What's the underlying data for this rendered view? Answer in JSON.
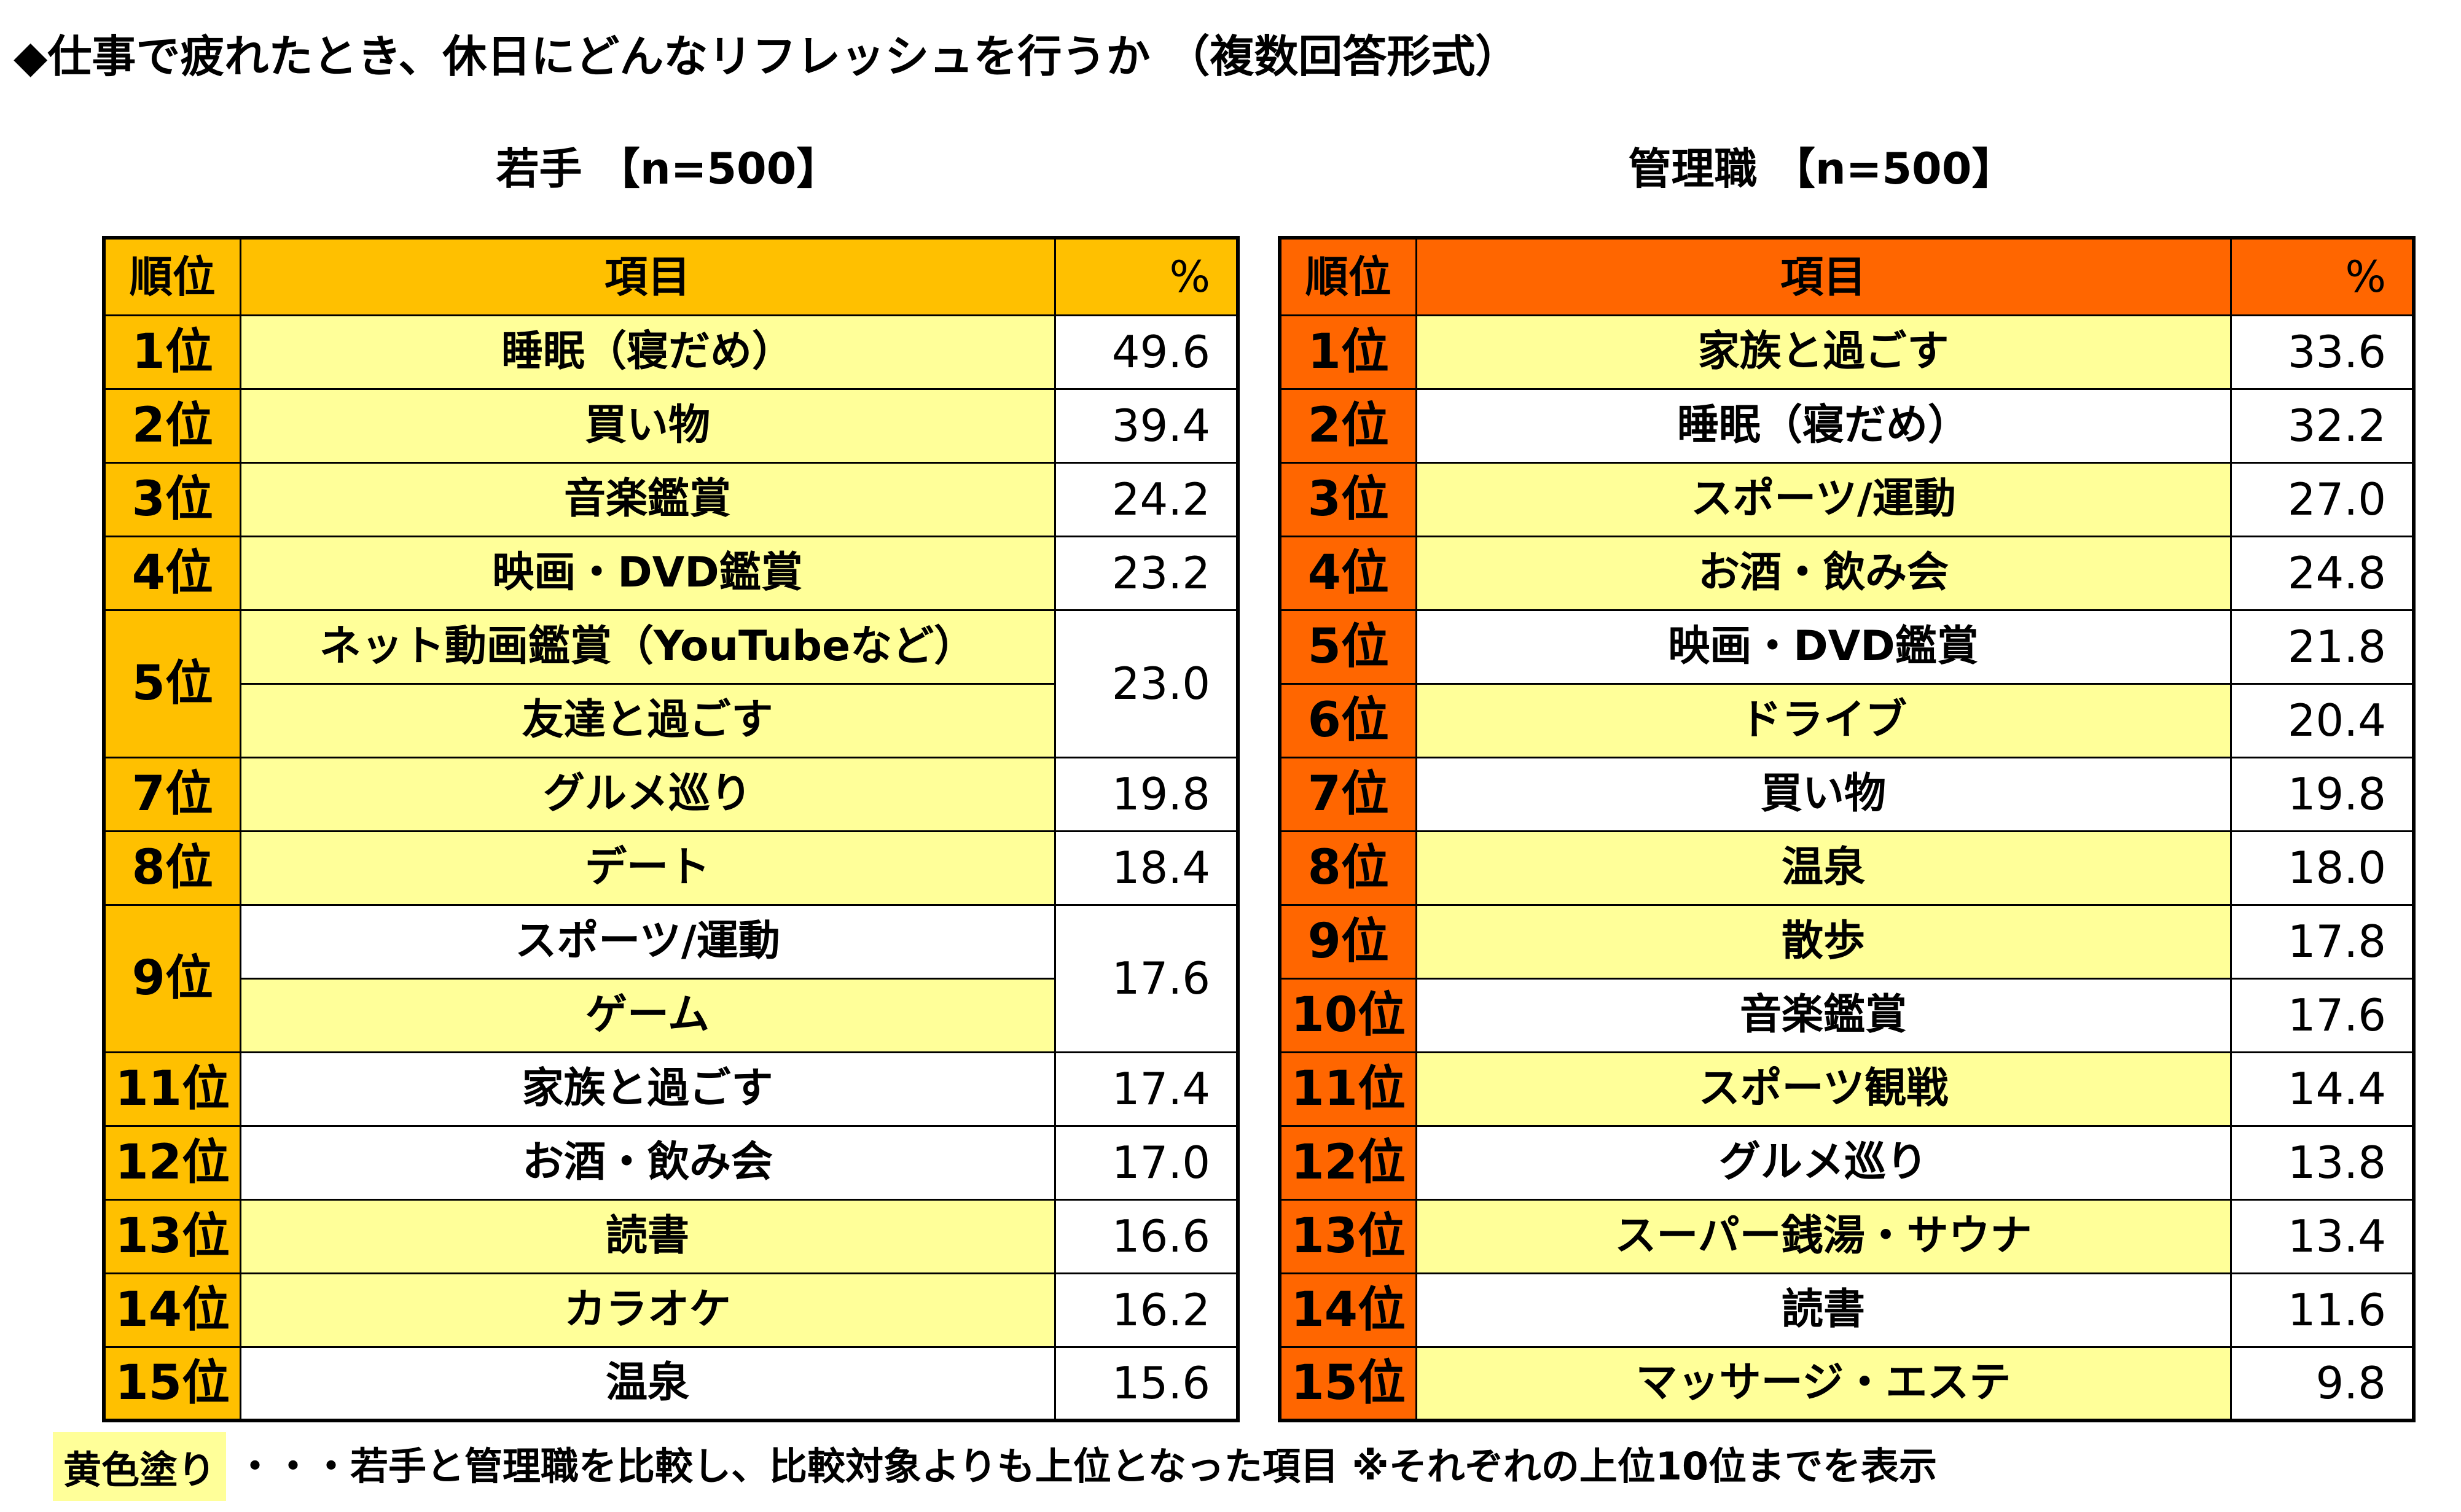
{
  "title": "◆仕事で疲れたとき、休日にどんなリフレッシュを行うか （複数回答形式）",
  "colors": {
    "highlight": "#FFFF99",
    "young_rank": "#FFC000",
    "manager_rank": "#FF6600",
    "plain": "#FFFFFF"
  },
  "tables": [
    {
      "subtitle": "若手 【n=500】",
      "headers": {
        "rank": "順位",
        "item": "項目",
        "pct": "%"
      },
      "rows": [
        {
          "rank": "1位",
          "items": [
            {
              "label": "睡眠（寝だめ）",
              "highlight": true
            }
          ],
          "pct": "49.6"
        },
        {
          "rank": "2位",
          "items": [
            {
              "label": "買い物",
              "highlight": true
            }
          ],
          "pct": "39.4"
        },
        {
          "rank": "3位",
          "items": [
            {
              "label": "音楽鑑賞",
              "highlight": true
            }
          ],
          "pct": "24.2"
        },
        {
          "rank": "4位",
          "items": [
            {
              "label": "映画・DVD鑑賞",
              "highlight": true
            }
          ],
          "pct": "23.2"
        },
        {
          "rank": "5位",
          "items": [
            {
              "label": "ネット動画鑑賞（YouTubeなど）",
              "highlight": true
            },
            {
              "label": "友達と過ごす",
              "highlight": true
            }
          ],
          "pct": "23.0"
        },
        {
          "rank": "7位",
          "items": [
            {
              "label": "グルメ巡り",
              "highlight": true
            }
          ],
          "pct": "19.8"
        },
        {
          "rank": "8位",
          "items": [
            {
              "label": "デート",
              "highlight": true
            }
          ],
          "pct": "18.4"
        },
        {
          "rank": "9位",
          "items": [
            {
              "label": "スポーツ/運動",
              "highlight": false
            },
            {
              "label": "ゲーム",
              "highlight": true
            }
          ],
          "pct": "17.6"
        },
        {
          "rank": "11位",
          "items": [
            {
              "label": "家族と過ごす",
              "highlight": false
            }
          ],
          "pct": "17.4"
        },
        {
          "rank": "12位",
          "items": [
            {
              "label": "お酒・飲み会",
              "highlight": false
            }
          ],
          "pct": "17.0"
        },
        {
          "rank": "13位",
          "items": [
            {
              "label": "読書",
              "highlight": true
            }
          ],
          "pct": "16.6"
        },
        {
          "rank": "14位",
          "items": [
            {
              "label": "カラオケ",
              "highlight": true
            }
          ],
          "pct": "16.2"
        },
        {
          "rank": "15位",
          "items": [
            {
              "label": "温泉",
              "highlight": false
            }
          ],
          "pct": "15.6"
        }
      ]
    },
    {
      "subtitle": "管理職 【n=500】",
      "headers": {
        "rank": "順位",
        "item": "項目",
        "pct": "%"
      },
      "rows": [
        {
          "rank": "1位",
          "items": [
            {
              "label": "家族と過ごす",
              "highlight": true
            }
          ],
          "pct": "33.6"
        },
        {
          "rank": "2位",
          "items": [
            {
              "label": "睡眠（寝だめ）",
              "highlight": false
            }
          ],
          "pct": "32.2"
        },
        {
          "rank": "3位",
          "items": [
            {
              "label": "スポーツ/運動",
              "highlight": true
            }
          ],
          "pct": "27.0"
        },
        {
          "rank": "4位",
          "items": [
            {
              "label": "お酒・飲み会",
              "highlight": true
            }
          ],
          "pct": "24.8"
        },
        {
          "rank": "5位",
          "items": [
            {
              "label": "映画・DVD鑑賞",
              "highlight": false
            }
          ],
          "pct": "21.8"
        },
        {
          "rank": "6位",
          "items": [
            {
              "label": "ドライブ",
              "highlight": true
            }
          ],
          "pct": "20.4"
        },
        {
          "rank": "7位",
          "items": [
            {
              "label": "買い物",
              "highlight": false
            }
          ],
          "pct": "19.8"
        },
        {
          "rank": "8位",
          "items": [
            {
              "label": "温泉",
              "highlight": true
            }
          ],
          "pct": "18.0"
        },
        {
          "rank": "9位",
          "items": [
            {
              "label": "散歩",
              "highlight": true
            }
          ],
          "pct": "17.8"
        },
        {
          "rank": "10位",
          "items": [
            {
              "label": "音楽鑑賞",
              "highlight": false
            }
          ],
          "pct": "17.6"
        },
        {
          "rank": "11位",
          "items": [
            {
              "label": "スポーツ観戦",
              "highlight": true
            }
          ],
          "pct": "14.4"
        },
        {
          "rank": "12位",
          "items": [
            {
              "label": "グルメ巡り",
              "highlight": false
            }
          ],
          "pct": "13.8"
        },
        {
          "rank": "13位",
          "items": [
            {
              "label": "スーパー銭湯・サウナ",
              "highlight": true
            }
          ],
          "pct": "13.4"
        },
        {
          "rank": "14位",
          "items": [
            {
              "label": "読書",
              "highlight": false
            }
          ],
          "pct": "11.6"
        },
        {
          "rank": "15位",
          "items": [
            {
              "label": "マッサージ・エステ",
              "highlight": true
            }
          ],
          "pct": "9.8"
        }
      ]
    }
  ],
  "legend": {
    "label": "黄色塗り",
    "text": "・・・若手と管理職を比較し、比較対象よりも上位となった項目 ※それぞれの上位10位までを表示"
  }
}
